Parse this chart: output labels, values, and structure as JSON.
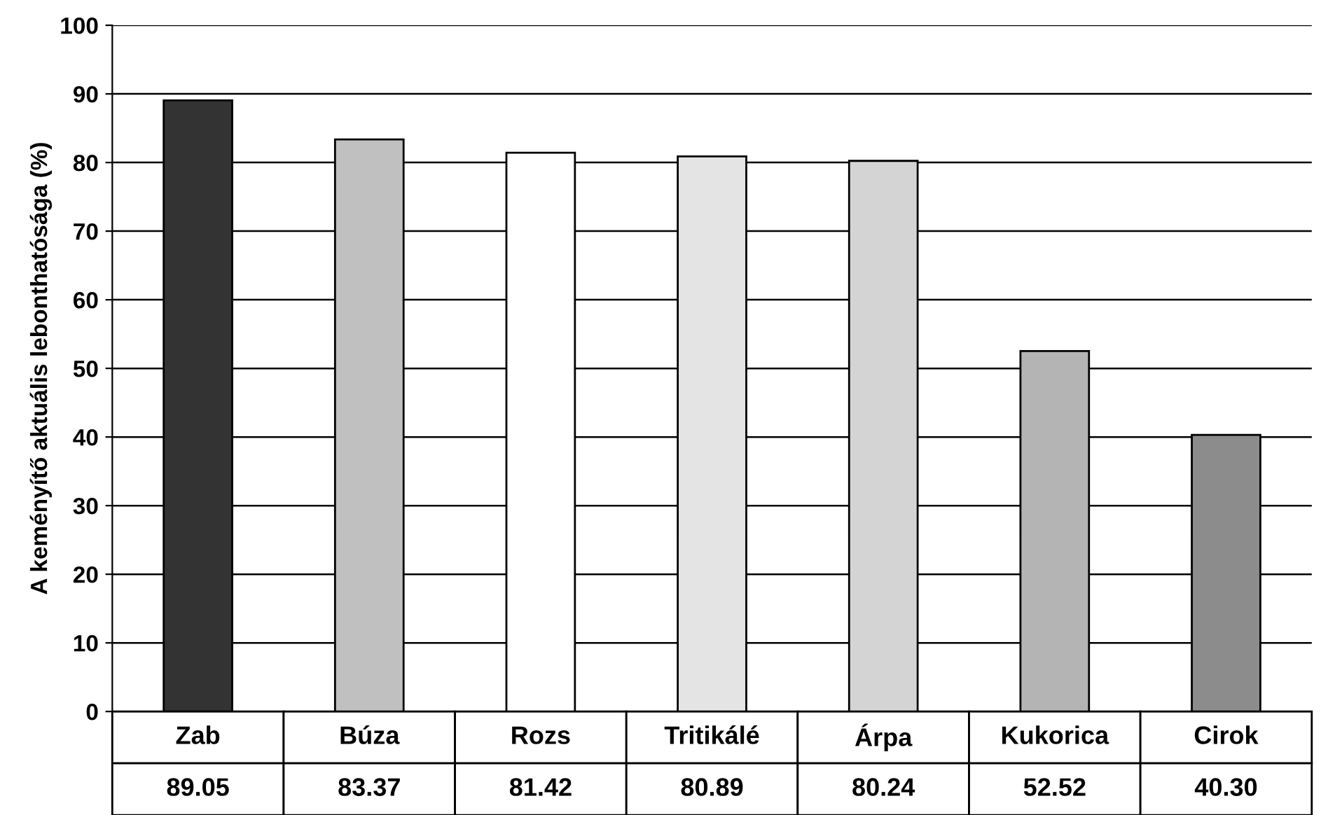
{
  "chart_data": {
    "type": "bar",
    "ylabel": "A keményítő aktuális lebonthatósága (%)",
    "categories": [
      "Zab",
      "Búza",
      "Rozs",
      "Tritikálé",
      "Árpa",
      "Kukorica",
      "Cirok"
    ],
    "values": [
      89.05,
      83.37,
      81.42,
      80.89,
      80.24,
      52.52,
      40.3
    ],
    "value_labels": [
      "89.05",
      "83.37",
      "81.42",
      "80.89",
      "80.24",
      "52.52",
      "40.30"
    ],
    "colors": [
      "#333333",
      "#c0c0c0",
      "#ffffff",
      "#e4e4e4",
      "#d4d4d4",
      "#b4b4b4",
      "#8c8c8c"
    ],
    "ylim": [
      0,
      100
    ],
    "yticks": [
      0,
      10,
      20,
      30,
      40,
      50,
      60,
      70,
      80,
      90,
      100
    ],
    "grid": "y",
    "legend": false
  }
}
